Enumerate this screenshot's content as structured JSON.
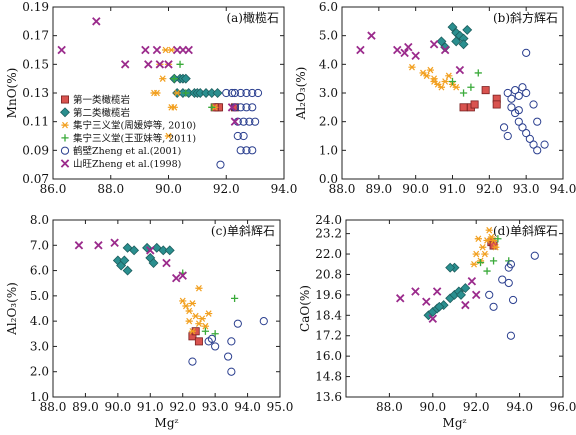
{
  "colors": {
    "type1": "#d9534f",
    "type2": "#2a8f8f",
    "jining_zhou": "#f2a020",
    "jining_wang": "#3aaa3a",
    "hebi": "#2b3f8f",
    "shanwang": "#9b2b8c"
  },
  "legend": [
    {
      "key": "type1",
      "label": "第一类橄榄岩",
      "marker": "square"
    },
    {
      "key": "type2",
      "label": "第二类橄榄岩",
      "marker": "diamond"
    },
    {
      "key": "jining_zhou",
      "label": "集宁三义堂(周媛婷等, 2010)",
      "marker": "asterisk"
    },
    {
      "key": "jining_wang",
      "label": "集宁三义堂(王亚妹等, 2011)",
      "marker": "plus"
    },
    {
      "key": "hebi",
      "label": "鹤壁Zheng et al.(2001)",
      "marker": "circle"
    },
    {
      "key": "shanwang",
      "label": "山旺Zheng et al.(1998)",
      "marker": "x"
    }
  ],
  "chart_data": [
    {
      "type": "scatter",
      "panel_title": "(a)橄榄石",
      "xlabel": "",
      "ylabel": "MnO(%)",
      "xlim": [
        86.0,
        94.0
      ],
      "ylim": [
        0.07,
        0.19
      ],
      "xticks": [
        "86.0",
        "88.0",
        "90.0",
        "92.0",
        "94.0"
      ],
      "yticks": [
        "0.07",
        "0.09",
        "0.11",
        "0.13",
        "0.15",
        "0.17",
        "0.19"
      ],
      "show_legend": true,
      "series": [
        {
          "key": "type1",
          "points": [
            [
              91.7,
              0.12
            ],
            [
              91.75,
              0.12
            ],
            [
              92.3,
              0.12
            ],
            [
              91.6,
              0.12
            ]
          ]
        },
        {
          "key": "type2",
          "points": [
            [
              90.4,
              0.14
            ],
            [
              90.5,
              0.14
            ],
            [
              90.6,
              0.14
            ],
            [
              90.3,
              0.13
            ],
            [
              90.5,
              0.13
            ],
            [
              90.7,
              0.13
            ],
            [
              90.9,
              0.13
            ],
            [
              91.0,
              0.13
            ],
            [
              91.1,
              0.13
            ],
            [
              91.3,
              0.13
            ],
            [
              91.5,
              0.13
            ],
            [
              91.7,
              0.13
            ],
            [
              90.2,
              0.14
            ]
          ]
        },
        {
          "key": "jining_zhou",
          "points": [
            [
              89.5,
              0.13
            ],
            [
              89.7,
              0.15
            ],
            [
              89.8,
              0.14
            ],
            [
              89.9,
              0.16
            ],
            [
              90.0,
              0.15
            ],
            [
              90.1,
              0.16
            ],
            [
              90.2,
              0.12
            ],
            [
              90.3,
              0.13
            ],
            [
              90.1,
              0.12
            ],
            [
              89.6,
              0.13
            ],
            [
              90.0,
              0.1
            ],
            [
              91.6,
              0.12
            ]
          ]
        },
        {
          "key": "jining_wang",
          "points": [
            [
              90.2,
              0.14
            ],
            [
              90.4,
              0.15
            ],
            [
              91.5,
              0.12
            ],
            [
              90.6,
              0.13
            ]
          ]
        },
        {
          "key": "hebi",
          "points": [
            [
              92.0,
              0.13
            ],
            [
              92.2,
              0.13
            ],
            [
              92.3,
              0.13
            ],
            [
              92.5,
              0.13
            ],
            [
              92.7,
              0.13
            ],
            [
              92.9,
              0.13
            ],
            [
              93.1,
              0.13
            ],
            [
              92.3,
              0.12
            ],
            [
              92.5,
              0.12
            ],
            [
              92.7,
              0.12
            ],
            [
              92.9,
              0.12
            ],
            [
              92.4,
              0.11
            ],
            [
              92.6,
              0.11
            ],
            [
              92.8,
              0.11
            ],
            [
              93.0,
              0.11
            ],
            [
              92.4,
              0.1
            ],
            [
              92.6,
              0.1
            ],
            [
              92.5,
              0.09
            ],
            [
              92.7,
              0.09
            ],
            [
              92.9,
              0.09
            ],
            [
              91.8,
              0.08
            ]
          ]
        },
        {
          "key": "shanwang",
          "points": [
            [
              86.3,
              0.16
            ],
            [
              87.5,
              0.18
            ],
            [
              88.5,
              0.15
            ],
            [
              89.2,
              0.16
            ],
            [
              89.3,
              0.15
            ],
            [
              89.6,
              0.16
            ],
            [
              89.7,
              0.15
            ],
            [
              90.0,
              0.15
            ],
            [
              90.3,
              0.16
            ],
            [
              90.5,
              0.16
            ],
            [
              90.7,
              0.16
            ],
            [
              92.2,
              0.12
            ],
            [
              92.3,
              0.11
            ]
          ]
        }
      ]
    },
    {
      "type": "scatter",
      "panel_title": "(b)斜方辉石",
      "xlabel": "",
      "ylabel": "Al₂O₃(%)",
      "xlim": [
        88.0,
        94.0
      ],
      "ylim": [
        0.0,
        6.0
      ],
      "xticks": [
        "88.0",
        "89.0",
        "90.0",
        "91.0",
        "92.0",
        "93.0",
        "94.0"
      ],
      "yticks": [
        "0.0",
        "1.0",
        "2.0",
        "3.0",
        "4.0",
        "5.0",
        "6.0"
      ],
      "show_legend": false,
      "series": [
        {
          "key": "type1",
          "points": [
            [
              91.3,
              2.5
            ],
            [
              91.5,
              2.5
            ],
            [
              91.9,
              3.1
            ],
            [
              92.2,
              2.8
            ],
            [
              92.2,
              2.6
            ],
            [
              91.6,
              2.6
            ]
          ]
        },
        {
          "key": "type2",
          "points": [
            [
              90.7,
              4.8
            ],
            [
              90.8,
              4.6
            ],
            [
              91.0,
              5.3
            ],
            [
              91.1,
              5.1
            ],
            [
              91.2,
              5.0
            ],
            [
              91.3,
              4.9
            ],
            [
              91.4,
              5.2
            ],
            [
              91.1,
              4.8
            ],
            [
              91.3,
              4.7
            ]
          ]
        },
        {
          "key": "jining_zhou",
          "points": [
            [
              89.9,
              3.9
            ],
            [
              90.2,
              3.7
            ],
            [
              90.3,
              3.6
            ],
            [
              90.4,
              3.8
            ],
            [
              90.5,
              3.5
            ],
            [
              90.6,
              3.3
            ],
            [
              90.7,
              3.2
            ],
            [
              90.8,
              3.4
            ],
            [
              90.9,
              3.6
            ],
            [
              91.0,
              3.3
            ],
            [
              91.1,
              3.2
            ],
            [
              90.5,
              3.4
            ]
          ]
        },
        {
          "key": "jining_wang",
          "points": [
            [
              91.0,
              3.4
            ],
            [
              91.3,
              3.0
            ],
            [
              91.7,
              3.7
            ],
            [
              91.5,
              3.2
            ]
          ]
        },
        {
          "key": "hebi",
          "points": [
            [
              92.5,
              3.0
            ],
            [
              92.6,
              2.8
            ],
            [
              92.7,
              3.1
            ],
            [
              92.8,
              2.9
            ],
            [
              92.9,
              3.2
            ],
            [
              93.0,
              3.0
            ],
            [
              92.6,
              2.5
            ],
            [
              92.7,
              2.3
            ],
            [
              92.8,
              2.0
            ],
            [
              92.9,
              1.8
            ],
            [
              93.0,
              1.6
            ],
            [
              93.1,
              1.4
            ],
            [
              93.2,
              1.2
            ],
            [
              93.3,
              1.0
            ],
            [
              93.5,
              1.2
            ],
            [
              92.4,
              1.8
            ],
            [
              92.5,
              1.5
            ],
            [
              93.0,
              4.4
            ],
            [
              92.8,
              2.4
            ],
            [
              93.2,
              2.6
            ],
            [
              93.3,
              2.0
            ]
          ]
        },
        {
          "key": "shanwang",
          "points": [
            [
              88.5,
              4.5
            ],
            [
              88.8,
              5.0
            ],
            [
              89.5,
              4.5
            ],
            [
              89.8,
              4.6
            ],
            [
              90.0,
              4.3
            ],
            [
              90.5,
              4.7
            ],
            [
              90.8,
              4.5
            ],
            [
              91.2,
              3.8
            ],
            [
              89.7,
              4.4
            ]
          ]
        }
      ]
    },
    {
      "type": "scatter",
      "panel_title": "(c)单斜辉石",
      "xlabel": "Mgᶻ",
      "ylabel": "Al₂O₃(%)",
      "xlim": [
        88.0,
        95.0
      ],
      "ylim": [
        1.0,
        8.0
      ],
      "xticks": [
        "88.0",
        "89.0",
        "90.0",
        "91.0",
        "92.0",
        "93.0",
        "94.0",
        "95.0"
      ],
      "yticks": [
        "1.0",
        "2.0",
        "3.0",
        "4.0",
        "5.0",
        "6.0",
        "7.0",
        "8.0"
      ],
      "show_legend": false,
      "series": [
        {
          "key": "type1",
          "points": [
            [
              92.3,
              3.4
            ],
            [
              92.5,
              3.2
            ],
            [
              92.4,
              3.6
            ]
          ]
        },
        {
          "key": "type2",
          "points": [
            [
              90.0,
              6.4
            ],
            [
              90.1,
              6.2
            ],
            [
              90.3,
              6.0
            ],
            [
              90.3,
              6.9
            ],
            [
              90.5,
              6.8
            ],
            [
              90.9,
              6.9
            ],
            [
              91.0,
              6.5
            ],
            [
              91.1,
              6.3
            ],
            [
              91.2,
              6.9
            ],
            [
              91.4,
              6.8
            ],
            [
              91.6,
              6.8
            ],
            [
              90.2,
              6.4
            ]
          ]
        },
        {
          "key": "jining_zhou",
          "points": [
            [
              92.0,
              4.8
            ],
            [
              92.1,
              4.6
            ],
            [
              92.2,
              4.4
            ],
            [
              92.3,
              4.7
            ],
            [
              92.4,
              4.2
            ],
            [
              92.5,
              3.9
            ],
            [
              92.6,
              4.1
            ],
            [
              92.7,
              3.8
            ],
            [
              92.8,
              4.3
            ],
            [
              92.5,
              5.3
            ],
            [
              92.3,
              3.6
            ],
            [
              92.2,
              4.0
            ]
          ]
        },
        {
          "key": "jining_wang",
          "points": [
            [
              92.0,
              5.9
            ],
            [
              92.7,
              3.6
            ],
            [
              93.6,
              4.9
            ],
            [
              93.0,
              3.5
            ]
          ]
        },
        {
          "key": "hebi",
          "points": [
            [
              92.3,
              2.4
            ],
            [
              92.8,
              3.2
            ],
            [
              93.0,
              3.0
            ],
            [
              93.4,
              2.6
            ],
            [
              93.5,
              2.0
            ],
            [
              93.5,
              3.2
            ],
            [
              93.7,
              3.9
            ],
            [
              94.5,
              4.0
            ],
            [
              92.9,
              3.3
            ]
          ]
        },
        {
          "key": "shanwang",
          "points": [
            [
              88.8,
              7.0
            ],
            [
              89.4,
              7.0
            ],
            [
              89.9,
              7.1
            ],
            [
              91.0,
              6.8
            ],
            [
              91.5,
              6.3
            ],
            [
              91.8,
              5.7
            ],
            [
              92.0,
              5.8
            ]
          ]
        }
      ]
    },
    {
      "type": "scatter",
      "panel_title": "(d)单斜辉石",
      "xlabel": "Mgᶻ",
      "ylabel": "CaO(%)",
      "xlim": [
        86.0,
        96.0
      ],
      "ylim": [
        13.6,
        24.0
      ],
      "xticks": [
        "88.0",
        "90.0",
        "92.0",
        "94.0",
        "96.0"
      ],
      "yticks": [
        "13.6",
        "14.8",
        "16.0",
        "17.2",
        "18.4",
        "19.6",
        "20.8",
        "22.0",
        "23.2",
        "24.0"
      ],
      "show_legend": false,
      "series": [
        {
          "key": "type1",
          "points": [
            [
              92.7,
              22.7
            ],
            [
              92.8,
              22.5
            ]
          ]
        },
        {
          "key": "type2",
          "points": [
            [
              89.8,
              18.4
            ],
            [
              90.0,
              18.6
            ],
            [
              90.2,
              18.8
            ],
            [
              90.5,
              19.0
            ],
            [
              90.8,
              19.4
            ],
            [
              91.0,
              19.6
            ],
            [
              91.2,
              19.8
            ],
            [
              91.5,
              20.0
            ],
            [
              91.0,
              21.2
            ],
            [
              90.8,
              21.2
            ],
            [
              90.3,
              18.9
            ],
            [
              91.3,
              19.6
            ]
          ]
        },
        {
          "key": "jining_zhou",
          "points": [
            [
              92.0,
              22.0
            ],
            [
              92.3,
              22.4
            ],
            [
              92.5,
              22.8
            ],
            [
              92.7,
              23.0
            ],
            [
              92.6,
              23.4
            ],
            [
              92.8,
              22.8
            ],
            [
              92.4,
              22.0
            ],
            [
              92.2,
              21.6
            ],
            [
              92.9,
              22.4
            ],
            [
              92.1,
              22.9
            ],
            [
              91.9,
              21.4
            ]
          ]
        },
        {
          "key": "jining_wang",
          "points": [
            [
              92.2,
              21.5
            ],
            [
              92.8,
              21.6
            ],
            [
              93.0,
              22.9
            ],
            [
              93.5,
              21.6
            ],
            [
              92.5,
              21.0
            ]
          ]
        },
        {
          "key": "hebi",
          "points": [
            [
              92.6,
              19.6
            ],
            [
              92.8,
              18.9
            ],
            [
              93.2,
              20.5
            ],
            [
              93.5,
              20.3
            ],
            [
              93.6,
              21.4
            ],
            [
              93.7,
              19.3
            ],
            [
              93.6,
              17.2
            ],
            [
              94.7,
              21.9
            ],
            [
              93.5,
              21.2
            ]
          ]
        },
        {
          "key": "shanwang",
          "points": [
            [
              88.5,
              19.4
            ],
            [
              89.2,
              19.8
            ],
            [
              89.7,
              19.2
            ],
            [
              90.0,
              18.2
            ],
            [
              90.2,
              19.8
            ],
            [
              91.5,
              19.0
            ],
            [
              92.0,
              19.6
            ],
            [
              91.8,
              20.4
            ]
          ]
        }
      ]
    }
  ]
}
